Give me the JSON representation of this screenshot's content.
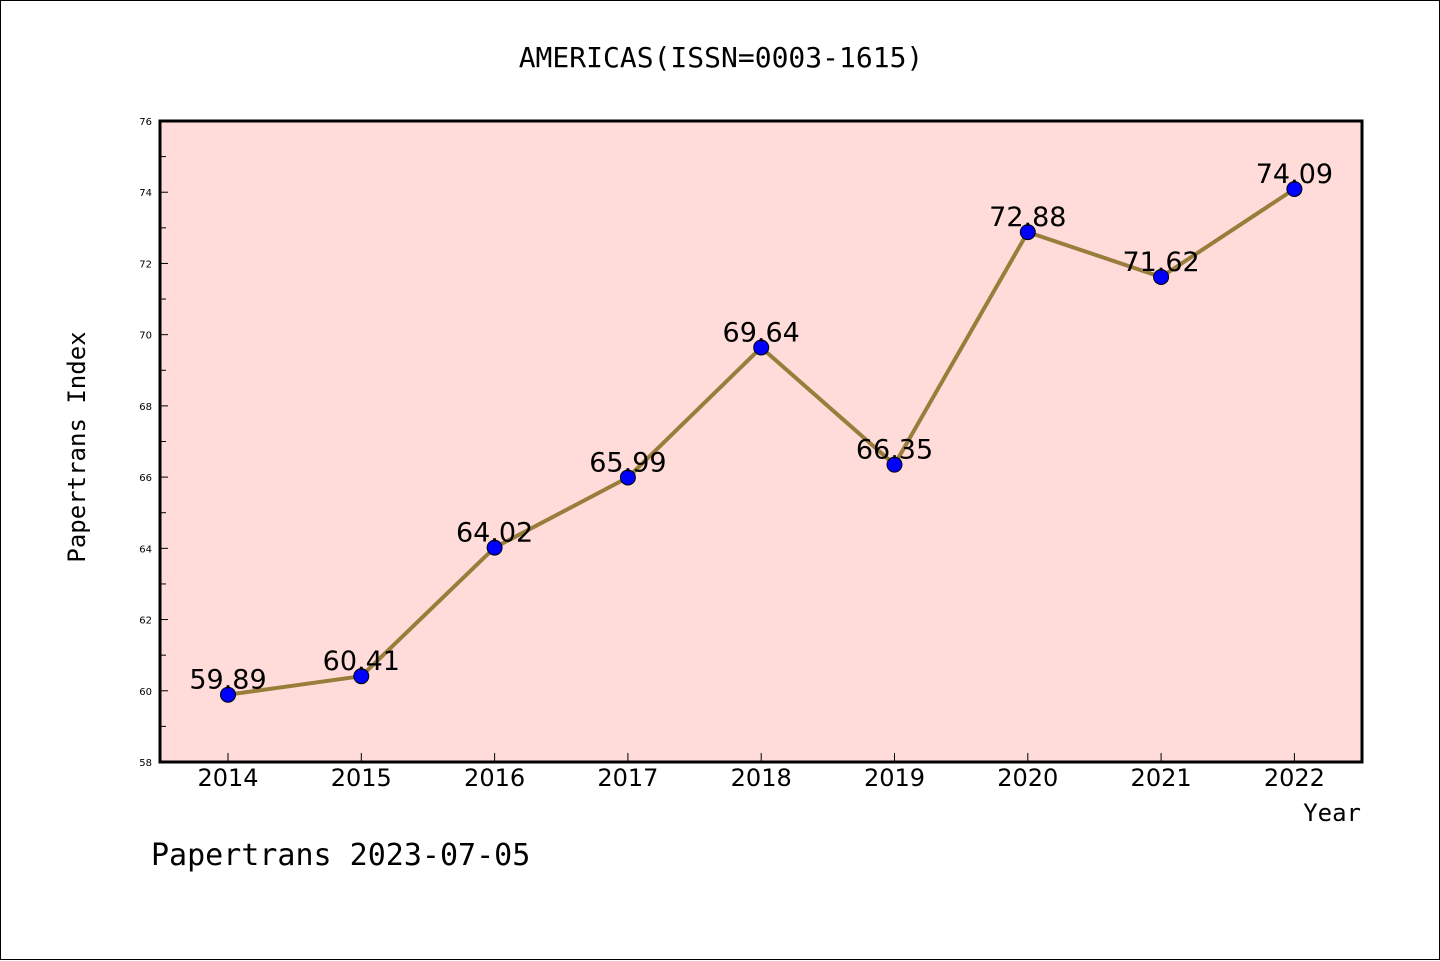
{
  "chart_data": {
    "type": "line",
    "title": "AMERICAS(ISSN=0003-1615)",
    "xlabel": "Year",
    "ylabel": "Papertrans Index",
    "x": [
      "2014",
      "2015",
      "2016",
      "2017",
      "2018",
      "2019",
      "2020",
      "2021",
      "2022"
    ],
    "values": [
      59.89,
      60.41,
      64.02,
      65.99,
      69.64,
      66.35,
      72.88,
      71.62,
      74.09
    ],
    "data_labels": [
      "59.89",
      "60.41",
      "64.02",
      "65.99",
      "69.64",
      "66.35",
      "72.88",
      "71.62",
      "74.09"
    ],
    "ylim": [
      58,
      76
    ],
    "yticks": [
      "58",
      "60",
      "62",
      "64",
      "66",
      "68",
      "70",
      "72",
      "74",
      "76"
    ],
    "grid": false,
    "plot_background": "#ffdcd9",
    "line_color": "#9a7d3a",
    "marker_color": "#0000ff"
  },
  "footer": "Papertrans 2023-07-05"
}
